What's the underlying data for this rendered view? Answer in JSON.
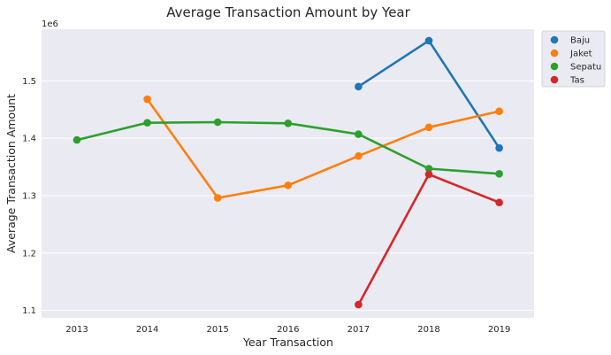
{
  "chart_data": {
    "type": "line",
    "title": "Average Transaction Amount by Year",
    "xlabel": "Year Transaction",
    "ylabel": "Average Transaction Amount",
    "y_offset_label": "1e6",
    "categories": [
      "2013",
      "2014",
      "2015",
      "2016",
      "2017",
      "2018",
      "2019"
    ],
    "y_ticks": [
      1.1,
      1.2,
      1.3,
      1.4,
      1.5
    ],
    "y_tick_labels": [
      "1.1",
      "1.2",
      "1.3",
      "1.4",
      "1.5"
    ],
    "ylim": [
      1.087,
      1.59
    ],
    "grid": true,
    "legend_position": "outside-top-right",
    "series": [
      {
        "name": "Baju",
        "color": "#1f77b4",
        "values": [
          null,
          null,
          null,
          null,
          1.49,
          1.57,
          1.383
        ]
      },
      {
        "name": "Jaket",
        "color": "#ff7f0e",
        "values": [
          null,
          1.468,
          1.296,
          1.318,
          1.369,
          1.419,
          1.447
        ]
      },
      {
        "name": "Sepatu",
        "color": "#2ca02c",
        "values": [
          1.397,
          1.427,
          1.428,
          1.426,
          1.407,
          1.347,
          1.338
        ]
      },
      {
        "name": "Tas",
        "color": "#d62728",
        "values": [
          null,
          null,
          null,
          null,
          1.11,
          1.337,
          1.288
        ]
      }
    ]
  }
}
